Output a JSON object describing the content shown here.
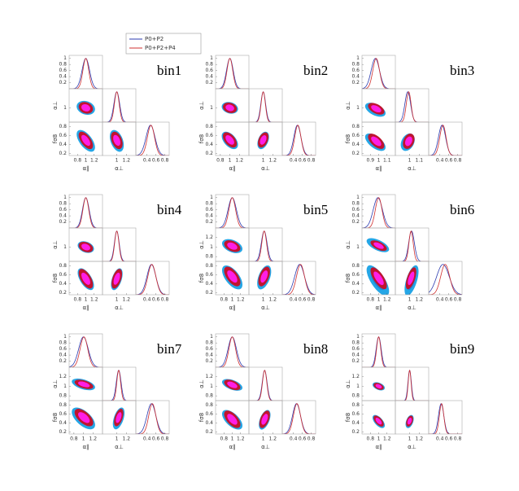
{
  "figure": {
    "params": [
      "α∥",
      "α⊥",
      "fσ8"
    ],
    "density_lim": [
      0,
      1.1
    ],
    "density_ticks": [
      0.2,
      0.4,
      0.6,
      0.8,
      1
    ],
    "series": [
      {
        "name": "P0+P2",
        "color": "#2b3bb0",
        "fills": [
          "#25a6e6",
          "#1e86d8"
        ]
      },
      {
        "name": "P0+P2+P4",
        "color": "#d03030",
        "fills": [
          "#c0142e",
          "#ff1ee6"
        ]
      }
    ]
  },
  "chart_data": [
    {
      "type": "corner",
      "title": "bin1",
      "xlims": [
        [
          0.6,
          1.4
        ],
        [
          0.7,
          1.4
        ],
        [
          0.15,
          0.9
        ]
      ],
      "xticks": [
        [
          0.8,
          1,
          1.2
        ],
        [
          1,
          1.2
        ],
        [
          0.4,
          0.6,
          0.8
        ]
      ],
      "yticks": [
        [
          1
        ],
        [
          0.2,
          0.4,
          0.6,
          0.8
        ]
      ],
      "fits": [
        {
          "mean": [
            1.0,
            1.0,
            0.48
          ],
          "sigma": [
            0.09,
            0.06,
            0.1
          ],
          "corr": [
            -0.2,
            -0.6,
            -0.4
          ]
        },
        {
          "mean": [
            1.0,
            1.0,
            0.49
          ],
          "sigma": [
            0.07,
            0.05,
            0.08
          ],
          "corr": [
            -0.2,
            -0.6,
            -0.4
          ]
        }
      ]
    },
    {
      "type": "corner",
      "title": "bin2",
      "xlims": [
        [
          0.7,
          1.4
        ],
        [
          0.7,
          1.4
        ],
        [
          0.15,
          0.9
        ]
      ],
      "xticks": [
        [
          0.8,
          1,
          1.2
        ],
        [
          1,
          1.2
        ],
        [
          0.4,
          0.6,
          0.8
        ]
      ],
      "yticks": [
        [
          1
        ],
        [
          0.2,
          0.4,
          0.6,
          0.8
        ]
      ],
      "fits": [
        {
          "mean": [
            1.0,
            1.0,
            0.49
          ],
          "sigma": [
            0.07,
            0.05,
            0.08
          ],
          "corr": [
            -0.2,
            -0.5,
            0.4
          ]
        },
        {
          "mean": [
            1.0,
            1.0,
            0.5
          ],
          "sigma": [
            0.06,
            0.045,
            0.07
          ],
          "corr": [
            -0.2,
            -0.5,
            0.4
          ]
        }
      ]
    },
    {
      "type": "corner",
      "title": "bin3",
      "xlims": [
        [
          0.8,
          1.2
        ],
        [
          0.85,
          1.2
        ],
        [
          0.15,
          0.9
        ]
      ],
      "xticks": [
        [
          0.9,
          1,
          1.1
        ],
        [
          1,
          1.1
        ],
        [
          0.4,
          0.6,
          0.8
        ]
      ],
      "yticks": [
        [
          1
        ],
        [
          0.2,
          0.4,
          0.6,
          0.8
        ]
      ],
      "fits": [
        {
          "mean": [
            0.96,
            0.98,
            0.45
          ],
          "sigma": [
            0.05,
            0.03,
            0.08
          ],
          "corr": [
            -0.5,
            -0.6,
            0.3
          ]
        },
        {
          "mean": [
            0.97,
            0.99,
            0.47
          ],
          "sigma": [
            0.04,
            0.025,
            0.07
          ],
          "corr": [
            -0.5,
            -0.6,
            0.3
          ]
        }
      ]
    },
    {
      "type": "corner",
      "title": "bin4",
      "xlims": [
        [
          0.6,
          1.4
        ],
        [
          0.7,
          1.4
        ],
        [
          0.15,
          0.9
        ]
      ],
      "xticks": [
        [
          0.8,
          1,
          1.2
        ],
        [
          1,
          1.2
        ],
        [
          0.4,
          0.6,
          0.8
        ]
      ],
      "yticks": [
        [
          1
        ],
        [
          0.2,
          0.4,
          0.6,
          0.8
        ]
      ],
      "fits": [
        {
          "mean": [
            1.0,
            1.0,
            0.5
          ],
          "sigma": [
            0.08,
            0.05,
            0.1
          ],
          "corr": [
            -0.3,
            -0.6,
            0.5
          ]
        },
        {
          "mean": [
            1.0,
            1.0,
            0.51
          ],
          "sigma": [
            0.07,
            0.045,
            0.09
          ],
          "corr": [
            -0.3,
            -0.6,
            0.5
          ]
        }
      ]
    },
    {
      "type": "corner",
      "title": "bin5",
      "xlims": [
        [
          0.6,
          1.4
        ],
        [
          0.7,
          1.4
        ],
        [
          0.15,
          0.9
        ]
      ],
      "xticks": [
        [
          0.8,
          1,
          1.2
        ],
        [
          1,
          1.2
        ],
        [
          0.4,
          0.6,
          0.8
        ]
      ],
      "yticks": [
        [
          0.8,
          1,
          1.2
        ],
        [
          0.2,
          0.4,
          0.6,
          0.8
        ]
      ],
      "fits": [
        {
          "mean": [
            1.0,
            1.02,
            0.54
          ],
          "sigma": [
            0.1,
            0.06,
            0.11
          ],
          "corr": [
            -0.4,
            -0.6,
            0.5
          ]
        },
        {
          "mean": [
            1.0,
            1.02,
            0.56
          ],
          "sigma": [
            0.08,
            0.05,
            0.09
          ],
          "corr": [
            -0.4,
            -0.6,
            0.5
          ]
        }
      ]
    },
    {
      "type": "corner",
      "title": "bin6",
      "xlims": [
        [
          0.6,
          1.4
        ],
        [
          0.7,
          1.4
        ],
        [
          0.15,
          0.9
        ]
      ],
      "xticks": [
        [
          0.8,
          1,
          1.2
        ],
        [
          1,
          1.2
        ],
        [
          0.4,
          0.6,
          0.8
        ]
      ],
      "yticks": [
        [
          1
        ],
        [
          0.2,
          0.4,
          0.6,
          0.8
        ]
      ],
      "fits": [
        {
          "mean": [
            0.98,
            1.04,
            0.47
          ],
          "sigma": [
            0.11,
            0.06,
            0.14
          ],
          "corr": [
            -0.6,
            -0.7,
            0.6
          ]
        },
        {
          "mean": [
            1.0,
            1.03,
            0.52
          ],
          "sigma": [
            0.08,
            0.045,
            0.1
          ],
          "corr": [
            -0.6,
            -0.7,
            0.6
          ]
        }
      ]
    },
    {
      "type": "corner",
      "title": "bin7",
      "xlims": [
        [
          0.7,
          1.4
        ],
        [
          0.7,
          1.4
        ],
        [
          0.15,
          0.9
        ]
      ],
      "xticks": [
        [
          0.8,
          1,
          1.2
        ],
        [
          1,
          1.2
        ],
        [
          0.4,
          0.6,
          0.8
        ]
      ],
      "yticks": [
        [
          1.2,
          1,
          0.8
        ],
        [
          0.2,
          0.4,
          0.6,
          0.8
        ]
      ],
      "fits": [
        {
          "mean": [
            1.0,
            1.04,
            0.5
          ],
          "sigma": [
            0.1,
            0.05,
            0.1
          ],
          "corr": [
            -0.5,
            -0.6,
            0.5
          ]
        },
        {
          "mean": [
            1.01,
            1.04,
            0.52
          ],
          "sigma": [
            0.08,
            0.04,
            0.08
          ],
          "corr": [
            -0.5,
            -0.6,
            0.5
          ]
        }
      ]
    },
    {
      "type": "corner",
      "title": "bin8",
      "xlims": [
        [
          0.6,
          1.4
        ],
        [
          0.7,
          1.4
        ],
        [
          0.15,
          0.9
        ]
      ],
      "xticks": [
        [
          0.8,
          1,
          1.2
        ],
        [
          1,
          1.2
        ],
        [
          0.4,
          0.6,
          0.8
        ]
      ],
      "yticks": [
        [
          1.2,
          1,
          0.8
        ],
        [
          0.2,
          0.4,
          0.6,
          0.8
        ]
      ],
      "fits": [
        {
          "mean": [
            1.0,
            1.03,
            0.47
          ],
          "sigma": [
            0.1,
            0.05,
            0.09
          ],
          "corr": [
            -0.5,
            -0.6,
            0.5
          ]
        },
        {
          "mean": [
            1.0,
            1.03,
            0.48
          ],
          "sigma": [
            0.08,
            0.045,
            0.08
          ],
          "corr": [
            -0.5,
            -0.6,
            0.5
          ]
        }
      ]
    },
    {
      "type": "corner",
      "title": "bin9",
      "xlims": [
        [
          0.6,
          1.4
        ],
        [
          0.7,
          1.4
        ],
        [
          0.15,
          0.9
        ]
      ],
      "xticks": [
        [
          0.8,
          1,
          1.2
        ],
        [
          1,
          1.2
        ],
        [
          0.4,
          0.6,
          0.8
        ]
      ],
      "yticks": [
        [
          1.2,
          1,
          0.8
        ],
        [
          0.2,
          0.4,
          0.6,
          0.8
        ]
      ],
      "fits": [
        {
          "mean": [
            1.0,
            1.0,
            0.43
          ],
          "sigma": [
            0.06,
            0.035,
            0.06
          ],
          "corr": [
            -0.4,
            -0.6,
            0.4
          ]
        },
        {
          "mean": [
            1.0,
            1.0,
            0.44
          ],
          "sigma": [
            0.05,
            0.03,
            0.05
          ],
          "corr": [
            -0.4,
            -0.6,
            0.4
          ]
        }
      ]
    }
  ]
}
